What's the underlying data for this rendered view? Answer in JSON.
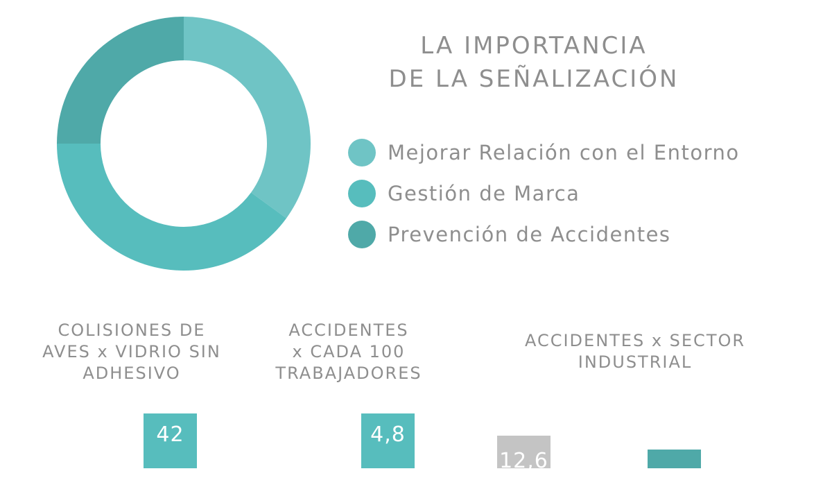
{
  "title": {
    "line1": "LA IMPORTANCIA",
    "line2": "DE LA SEÑALIZACIÓN"
  },
  "chart_data": [
    {
      "type": "pie",
      "variant": "donut",
      "title": "LA IMPORTANCIA DE LA SEÑALIZACIÓN",
      "legend_position": "right",
      "slices": [
        {
          "label": "Mejorar Relación con el Entorno",
          "value": 35,
          "color": "#6fc4c5"
        },
        {
          "label": "Gestión de Marca",
          "value": 40,
          "color": "#57bdbd"
        },
        {
          "label": "Prevención de Accidentes",
          "value": 25,
          "color": "#4fa9a8"
        }
      ]
    },
    {
      "type": "bar",
      "title": "COLISIONES DE AVES x VIDRIO SIN ADHESIVO",
      "categories": [
        ""
      ],
      "values": [
        42
      ],
      "value_labels": [
        "42"
      ],
      "colors": [
        "#57bdbd"
      ]
    },
    {
      "type": "bar",
      "title": "ACCIDENTES x CADA 100 TRABAJADORES",
      "categories": [
        ""
      ],
      "values": [
        4.8
      ],
      "value_labels": [
        "4,8"
      ],
      "colors": [
        "#57bdbd"
      ]
    },
    {
      "type": "bar",
      "title": "ACCIDENTES x SECTOR INDUSTRIAL",
      "categories": [
        "",
        ""
      ],
      "values": [
        12.6,
        null
      ],
      "value_labels": [
        "12,6",
        ""
      ],
      "colors": [
        "#c4c4c4",
        "#4fa9a8"
      ]
    }
  ],
  "stats": {
    "birds": {
      "title_lines": [
        "COLISIONES DE",
        "AVES x VIDRIO SIN",
        "ADHESIVO"
      ],
      "value": "42"
    },
    "workers": {
      "title_lines": [
        "ACCIDENTES",
        "x CADA 100",
        "TRABAJADORES"
      ],
      "value": "4,8"
    },
    "sector": {
      "title_lines": [
        "ACCIDENTES x SECTOR",
        "INDUSTRIAL"
      ],
      "value_a": "12,6",
      "value_b": ""
    }
  }
}
